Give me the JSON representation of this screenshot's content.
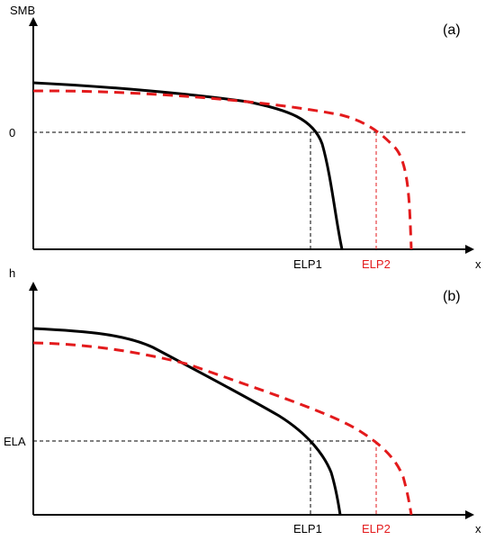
{
  "colors": {
    "axis": "#000000",
    "solid_curve": "#000000",
    "dashed_curve": "#e31a1c",
    "elp2_label": "#e31a1c"
  },
  "panel_a": {
    "panel_label": "(a)",
    "y_axis_label": "SMB",
    "x_axis_label": "x",
    "zero_label": "0",
    "elp1_label": "ELP1",
    "elp2_label": "ELP2"
  },
  "panel_b": {
    "panel_label": "(b)",
    "y_axis_label": "h",
    "x_axis_label": "x",
    "ela_label": "ELA",
    "elp1_label": "ELP1",
    "elp2_label": "ELP2"
  },
  "chart_data": [
    {
      "type": "line",
      "panel": "(a)",
      "ylabel": "SMB",
      "xlabel": "x",
      "reference_line_y_label": "0",
      "vertical_markers": [
        "ELP1",
        "ELP2"
      ],
      "series": [
        {
          "style": "solid",
          "color": "#000000"
        },
        {
          "style": "dashed",
          "color": "#e31a1c"
        }
      ]
    },
    {
      "type": "line",
      "panel": "(b)",
      "ylabel": "h",
      "xlabel": "x",
      "reference_line_y_label": "ELA",
      "vertical_markers": [
        "ELP1",
        "ELP2"
      ],
      "series": [
        {
          "style": "solid",
          "color": "#000000"
        },
        {
          "style": "dashed",
          "color": "#e31a1c"
        }
      ]
    }
  ]
}
